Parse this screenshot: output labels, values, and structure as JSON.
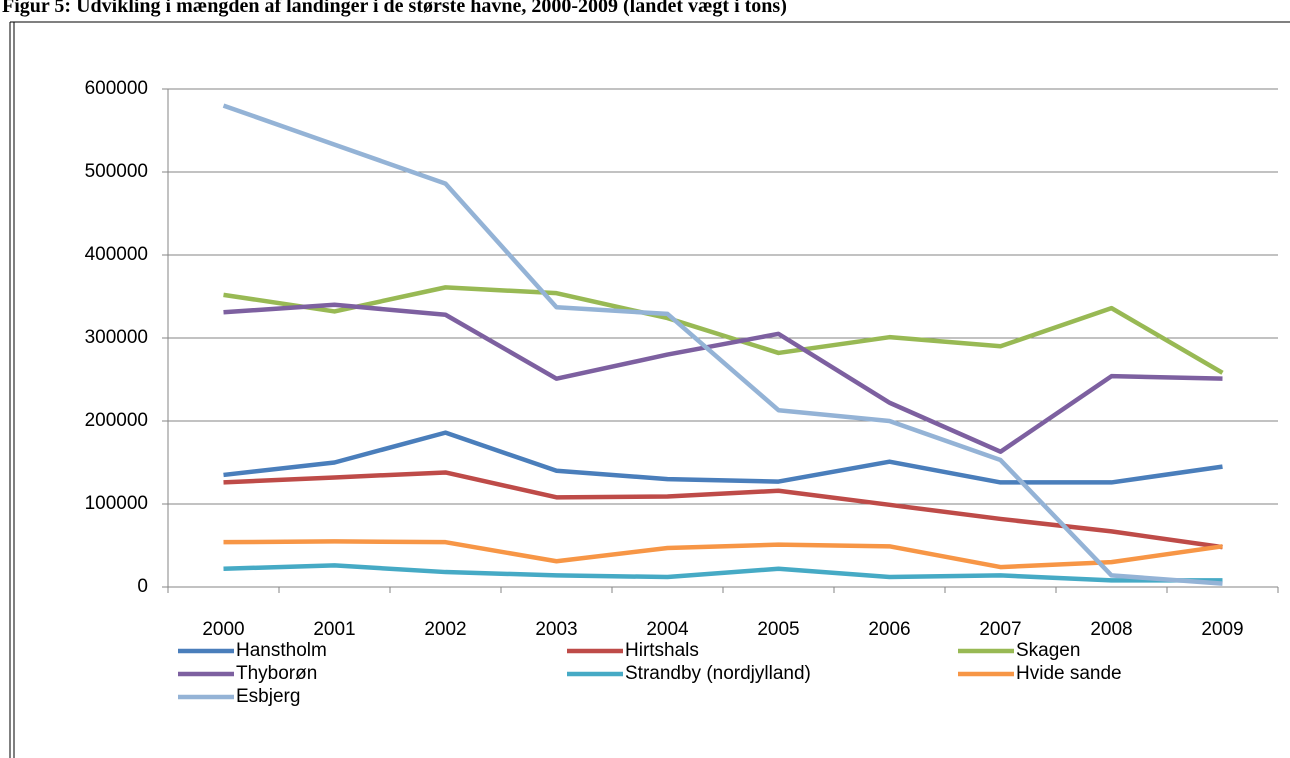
{
  "chart_data": {
    "type": "line",
    "title": "Figur 5: Udvikling i mængden af landinger i de største havne, 2000-2009 (landet vægt i tons)",
    "categories": [
      "2000",
      "2001",
      "2002",
      "2003",
      "2004",
      "2005",
      "2006",
      "2007",
      "2008",
      "2009"
    ],
    "series": [
      {
        "name": "Hanstholm",
        "color": "#4a7ebb",
        "values": [
          135000,
          150000,
          186000,
          140000,
          130000,
          127000,
          151000,
          126000,
          126000,
          145000
        ]
      },
      {
        "name": "Hirtshals",
        "color": "#be4b48",
        "values": [
          126000,
          132000,
          138000,
          108000,
          109000,
          116000,
          99000,
          82000,
          67000,
          48000
        ]
      },
      {
        "name": "Skagen",
        "color": "#98b954",
        "values": [
          352000,
          332000,
          361000,
          354000,
          324000,
          282000,
          301000,
          290000,
          336000,
          258000
        ]
      },
      {
        "name": "Thyborøn",
        "color": "#7d60a0",
        "values": [
          331000,
          340000,
          328000,
          251000,
          280000,
          305000,
          222000,
          163000,
          254000,
          251000
        ]
      },
      {
        "name": "Strandby (nordjylland)",
        "color": "#46aac5",
        "values": [
          22000,
          26000,
          18000,
          14000,
          12000,
          22000,
          12000,
          14000,
          8000,
          8000
        ]
      },
      {
        "name": "Hvide sande",
        "color": "#f79646",
        "values": [
          54000,
          55000,
          54000,
          31000,
          47000,
          51000,
          49000,
          24000,
          30000,
          49000
        ]
      },
      {
        "name": "Esbjerg",
        "color": "#94b3d6",
        "values": [
          580000,
          533000,
          486000,
          337000,
          329000,
          213000,
          200000,
          153000,
          14000,
          4000
        ]
      }
    ],
    "ylim": [
      0,
      600000
    ],
    "yticks": [
      0,
      100000,
      200000,
      300000,
      400000,
      500000,
      600000
    ],
    "grid": true,
    "legend": "bottom"
  }
}
